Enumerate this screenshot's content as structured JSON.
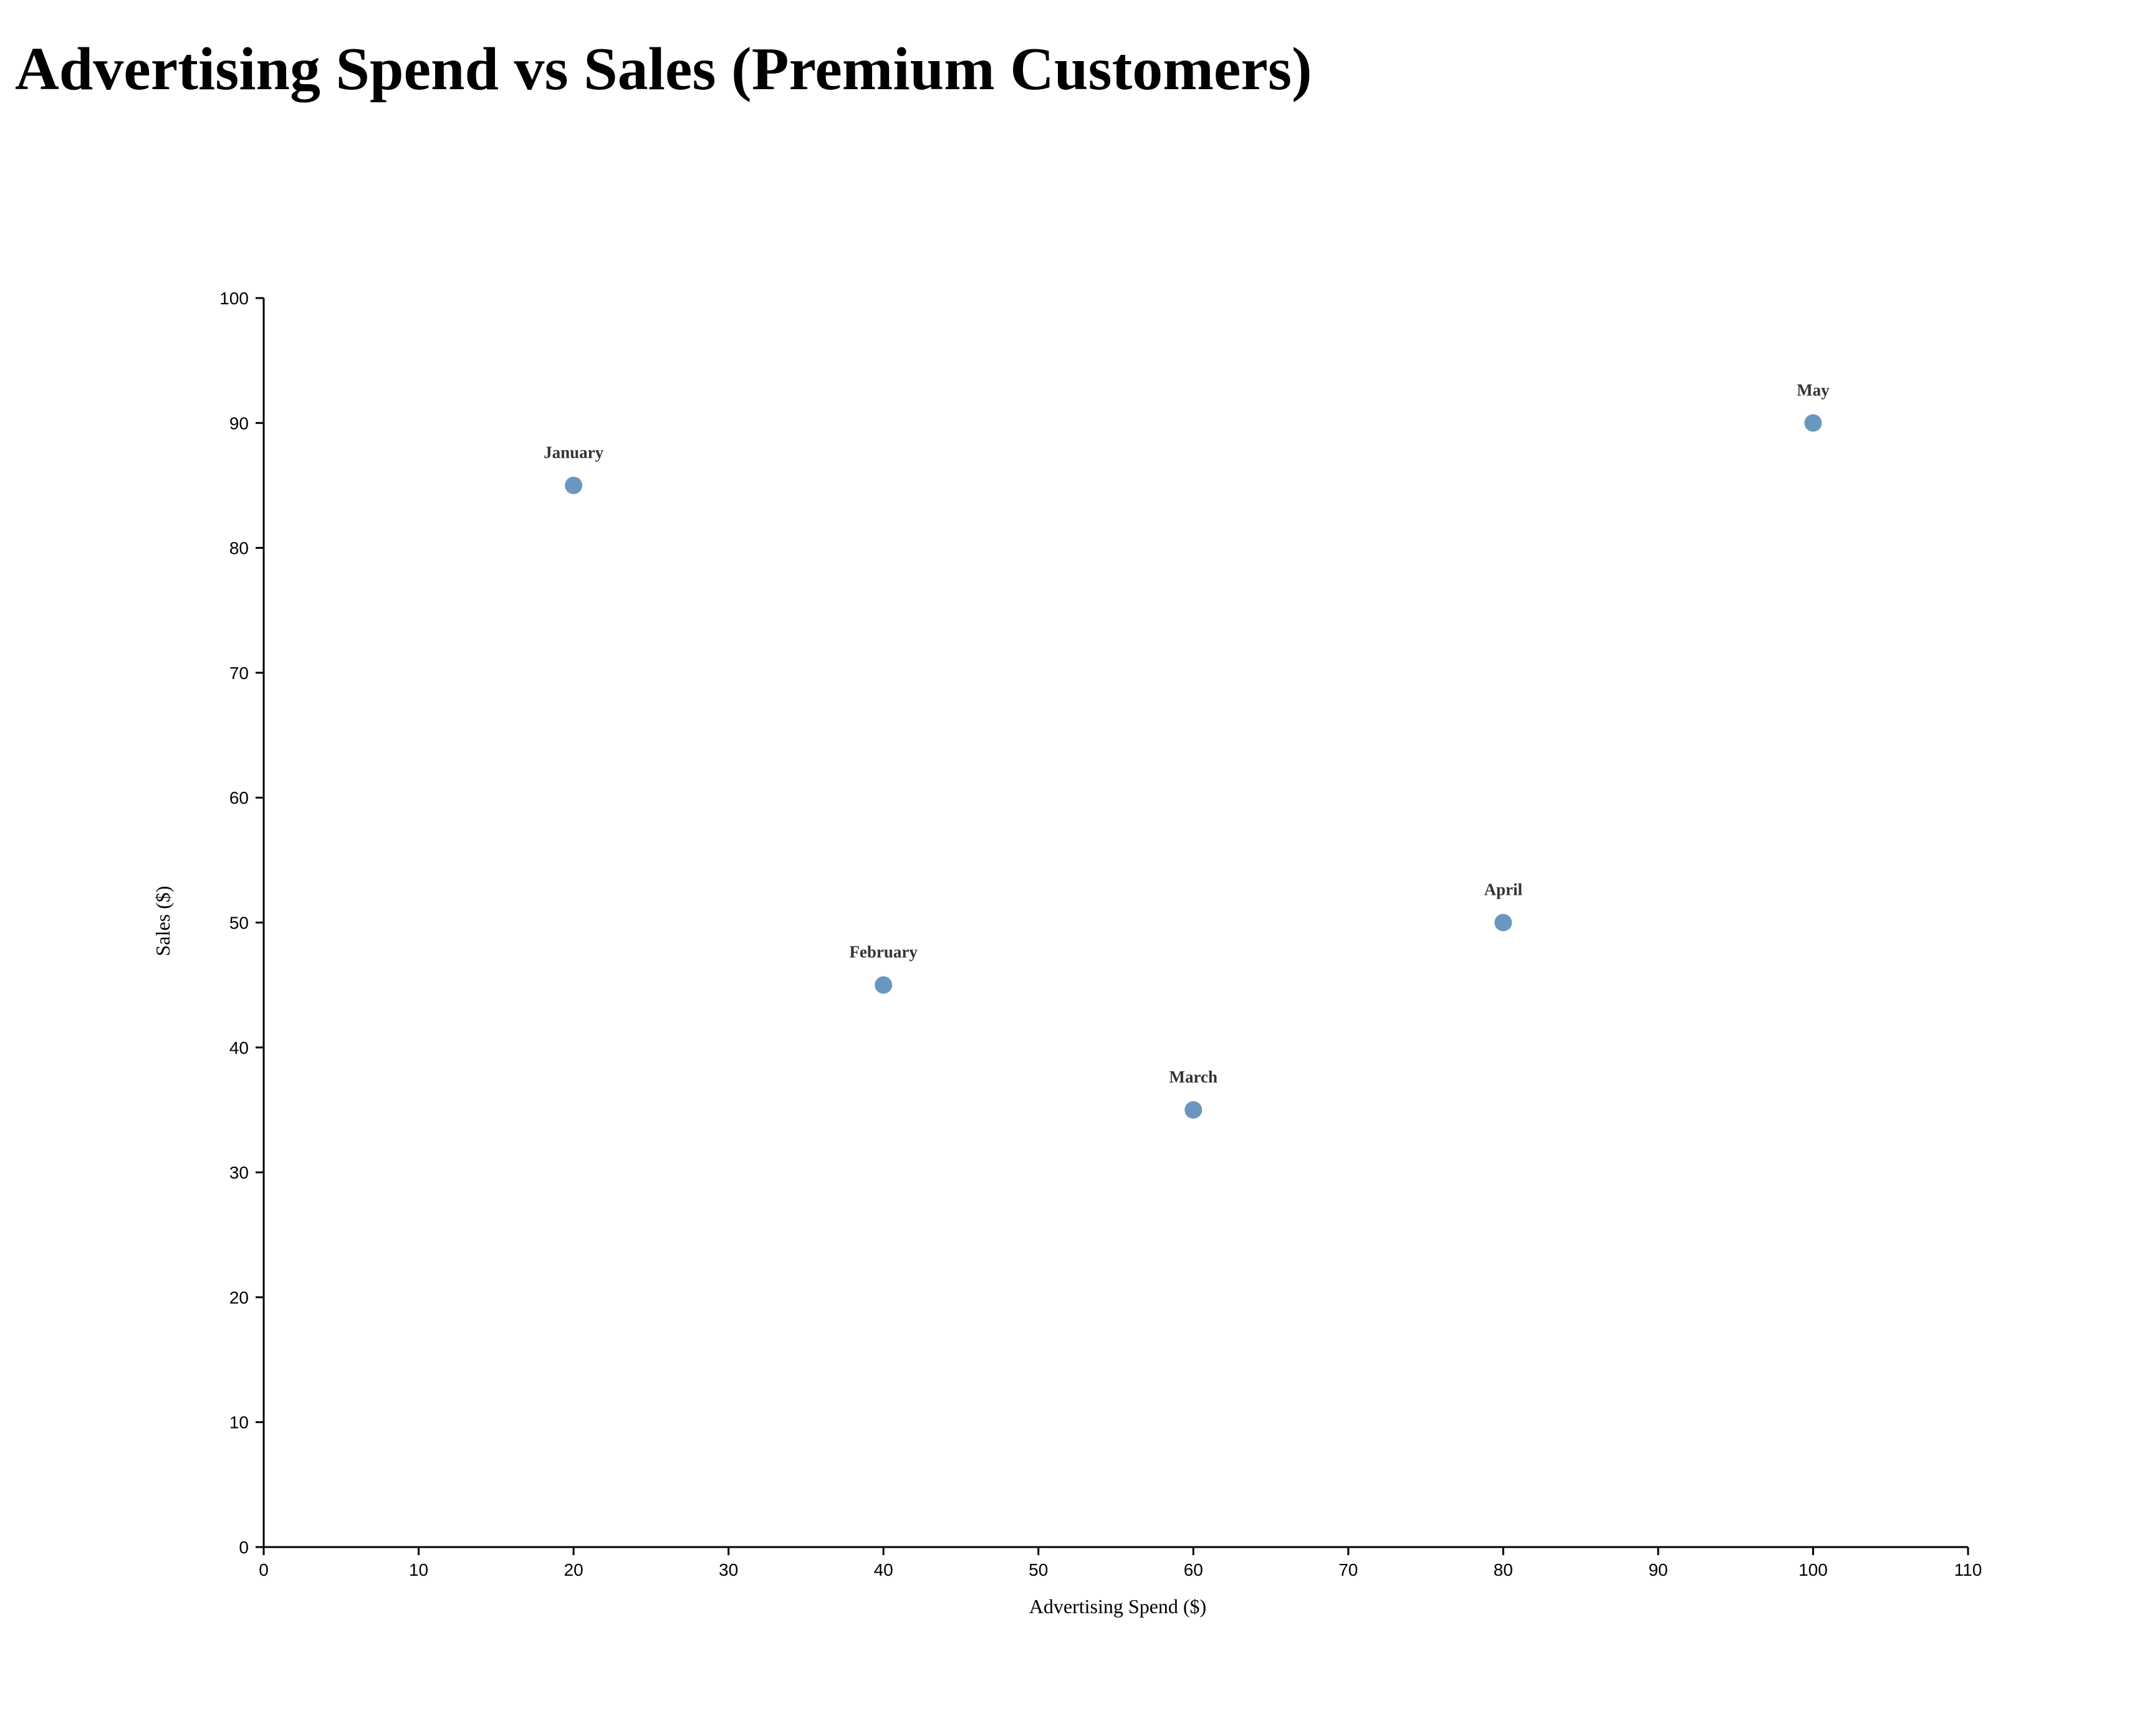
{
  "chart_data": {
    "type": "scatter",
    "title": "Advertising Spend vs Sales (Premium Customers)",
    "xlabel": "Advertising Spend ($)",
    "ylabel": "Sales ($)",
    "xlim": [
      0,
      110
    ],
    "ylim": [
      0,
      100
    ],
    "xticks": [
      0,
      10,
      20,
      30,
      40,
      50,
      60,
      70,
      80,
      90,
      100,
      110
    ],
    "yticks": [
      0,
      10,
      20,
      30,
      40,
      50,
      60,
      70,
      80,
      90,
      100
    ],
    "grid": false,
    "point_color": "#6a97c0",
    "points": [
      {
        "label": "January",
        "x": 20,
        "y": 85
      },
      {
        "label": "February",
        "x": 40,
        "y": 45
      },
      {
        "label": "March",
        "x": 60,
        "y": 35
      },
      {
        "label": "April",
        "x": 80,
        "y": 50
      },
      {
        "label": "May",
        "x": 100,
        "y": 90
      }
    ]
  }
}
